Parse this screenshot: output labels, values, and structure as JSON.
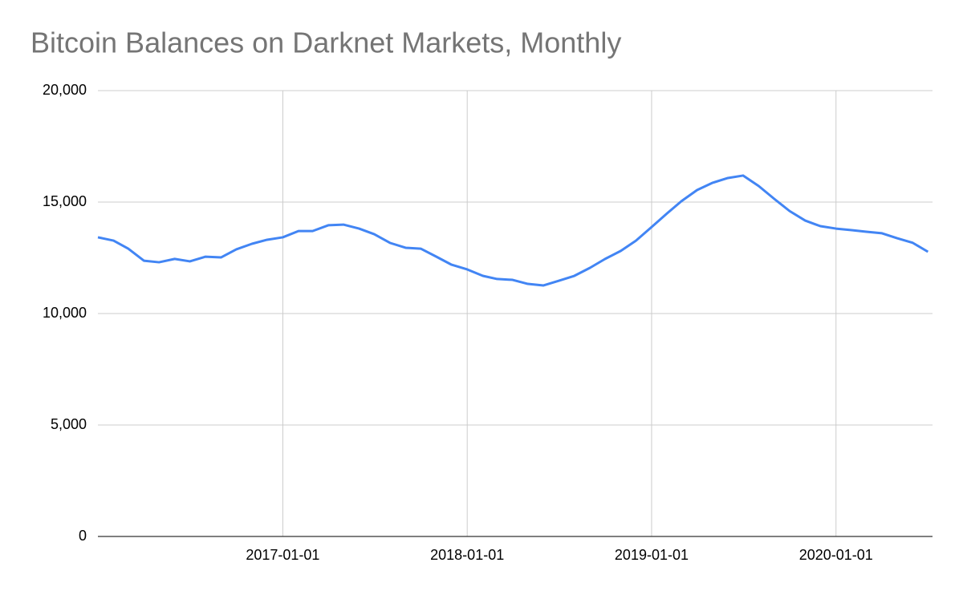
{
  "chart_data": {
    "type": "line",
    "title": "Bitcoin Balances on Darknet Markets, Monthly",
    "x": [
      "2016-01-01",
      "2016-02-01",
      "2016-03-01",
      "2016-04-01",
      "2016-05-01",
      "2016-06-01",
      "2016-07-01",
      "2016-08-01",
      "2016-09-01",
      "2016-10-01",
      "2016-11-01",
      "2016-12-01",
      "2017-01-01",
      "2017-02-01",
      "2017-03-01",
      "2017-04-01",
      "2017-05-01",
      "2017-06-01",
      "2017-07-01",
      "2017-08-01",
      "2017-09-01",
      "2017-10-01",
      "2017-11-01",
      "2017-12-01",
      "2018-01-01",
      "2018-02-01",
      "2018-03-01",
      "2018-04-01",
      "2018-05-01",
      "2018-06-01",
      "2018-07-01",
      "2018-08-01",
      "2018-09-01",
      "2018-10-01",
      "2018-11-01",
      "2018-12-01",
      "2019-01-01",
      "2019-02-01",
      "2019-03-01",
      "2019-04-01",
      "2019-05-01",
      "2019-06-01",
      "2019-07-01",
      "2019-08-01",
      "2019-09-01",
      "2019-10-01",
      "2019-11-01",
      "2019-12-01",
      "2020-01-01",
      "2020-02-01",
      "2020-03-01",
      "2020-04-01",
      "2020-05-01",
      "2020-06-01",
      "2020-07-01"
    ],
    "series": [
      {
        "color": "#4285f4",
        "values": [
          13420,
          13270,
          12910,
          12370,
          12300,
          12450,
          12340,
          12550,
          12520,
          12880,
          13130,
          13310,
          13420,
          13700,
          13700,
          13960,
          13990,
          13810,
          13560,
          13170,
          12950,
          12910,
          12550,
          12190,
          11980,
          11690,
          11550,
          11510,
          11330,
          11260,
          11470,
          11690,
          12050,
          12450,
          12810,
          13270,
          13880,
          14500,
          15040,
          15540,
          15860,
          16080,
          16190,
          15720,
          15140,
          14600,
          14170,
          13920,
          13810,
          13740,
          13670,
          13600,
          13380,
          13170,
          12770
        ]
      }
    ],
    "xlim": [
      "2016-01-01",
      "2020-07-10"
    ],
    "xticks": [
      "2017-01-01",
      "2018-01-01",
      "2019-01-01",
      "2020-01-01"
    ],
    "ylim": [
      0,
      20000
    ],
    "yticks": [
      0,
      {
        "value": 5000,
        "label": "5,000"
      },
      {
        "value": 10000,
        "label": "10,000"
      },
      {
        "value": 15000,
        "label": "15,000"
      },
      {
        "value": 20000,
        "label": "20,000"
      }
    ],
    "grid": true
  }
}
